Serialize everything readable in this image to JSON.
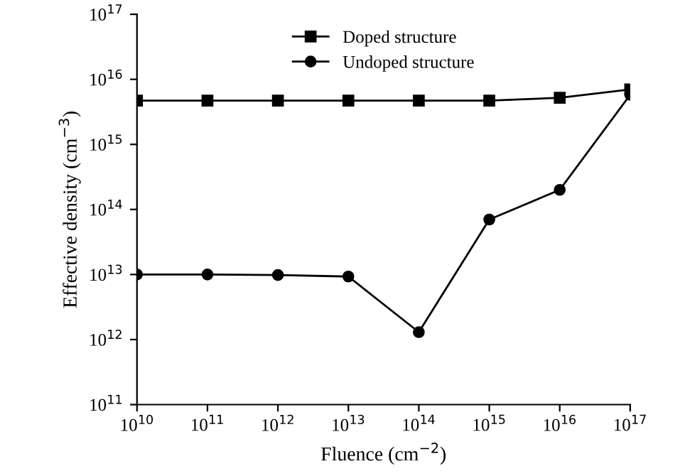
{
  "chart_data": {
    "type": "line",
    "xlabel": "Fluence (cm$^{−2}$)",
    "ylabel": "Effective density (cm$^{−3}$)",
    "x": [
      10000000000.0,
      100000000000.0,
      1000000000000.0,
      10000000000000.0,
      100000000000000.0,
      1000000000000000.0,
      1e+16,
      1e+17
    ],
    "series": [
      {
        "name": "Doped structure",
        "color": "#000000",
        "marker": "square",
        "values": [
          4700000000000000.0,
          4700000000000000.0,
          4700000000000000.0,
          4700000000000000.0,
          4700000000000000.0,
          4700000000000000.0,
          5200000000000000.0,
          7000000000000000.0
        ]
      },
      {
        "name": "Undoped structure",
        "color": "#000000",
        "marker": "circle",
        "values": [
          10000000000000.0,
          10000000000000.0,
          9800000000000.0,
          9300000000000.0,
          1300000000000.0,
          70000000000000.0,
          200000000000000.0,
          5800000000000000.0
        ]
      }
    ],
    "log": "xy",
    "legend": "top",
    "grid": false,
    "line_style": "solid",
    "xlim": [
      10000000000.0,
      1e+17
    ],
    "ylim": [
      100000000000.0,
      1e+17
    ],
    "xticks": [
      {
        "value": 10000000000.0,
        "label": "10$^{10}$"
      },
      {
        "value": 100000000000.0,
        "label": "10$^{11}$"
      },
      {
        "value": 1000000000000.0,
        "label": "10$^{12}$"
      },
      {
        "value": 10000000000000.0,
        "label": "10$^{13}$"
      },
      {
        "value": 100000000000000.0,
        "label": "10$^{14}$"
      },
      {
        "value": 1000000000000000.0,
        "label": "10$^{15}$"
      },
      {
        "value": 1e+16,
        "label": "10$^{16}$"
      },
      {
        "value": 1e+17,
        "label": "10$^{17}$"
      }
    ],
    "yticks": [
      {
        "value": 100000000000.0,
        "label": "10$^{11}$"
      },
      {
        "value": 1000000000000.0,
        "label": "10$^{12}$"
      },
      {
        "value": 10000000000000.0,
        "label": "10$^{13}$"
      },
      {
        "value": 100000000000000.0,
        "label": "10$^{14}$"
      },
      {
        "value": 1000000000000000.0,
        "label": "10$^{15}$"
      },
      {
        "value": 1e+16,
        "label": "10$^{16}$"
      },
      {
        "value": 1e+17,
        "label": "10$^{17}$"
      }
    ]
  }
}
